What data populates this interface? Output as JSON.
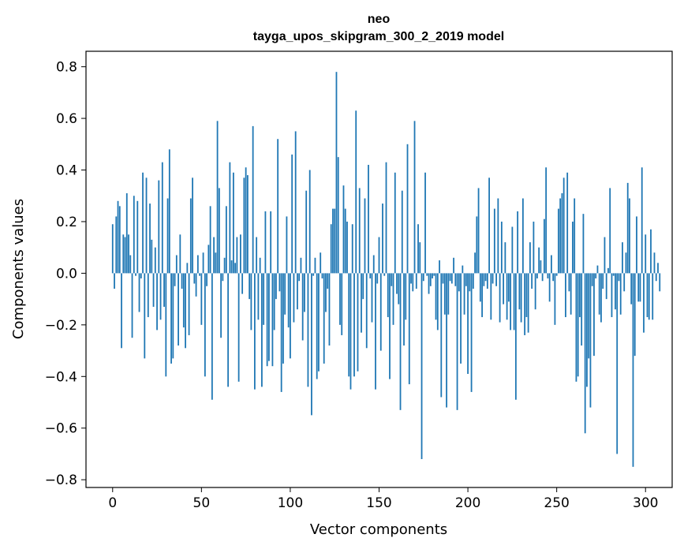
{
  "chart_data": {
    "type": "bar",
    "title": "neo",
    "subtitle": "tayga_upos_skipgram_300_2_2019 model",
    "xlabel": "Vector components",
    "ylabel": "Components values",
    "xlim": [
      -15,
      315
    ],
    "ylim": [
      -0.83,
      0.86
    ],
    "xticks": [
      0,
      50,
      100,
      150,
      200,
      250,
      300
    ],
    "xtick_labels": [
      "0",
      "50",
      "100",
      "150",
      "200",
      "250",
      "300"
    ],
    "yticks": [
      0.8,
      0.6,
      0.4,
      0.2,
      0.0,
      -0.2,
      -0.4,
      -0.6,
      -0.8
    ],
    "ytick_labels": [
      "0.8",
      "0.6",
      "0.4",
      "0.2",
      "0.0",
      "−0.2",
      "−0.4",
      "−0.6",
      "−0.8"
    ],
    "bar_color": "#1f77b4",
    "values": [
      0.19,
      -0.06,
      0.22,
      0.28,
      0.26,
      -0.29,
      0.15,
      0.14,
      0.31,
      0.15,
      0.07,
      -0.25,
      0.3,
      -0.01,
      0.28,
      -0.15,
      -0.02,
      0.39,
      -0.33,
      0.37,
      -0.17,
      0.27,
      0.13,
      -0.13,
      0.1,
      -0.22,
      0.36,
      -0.18,
      0.43,
      -0.13,
      -0.4,
      0.29,
      0.48,
      -0.35,
      -0.33,
      -0.05,
      0.07,
      -0.28,
      0.15,
      -0.06,
      -0.21,
      -0.29,
      0.04,
      -0.24,
      0.29,
      0.37,
      -0.04,
      -0.09,
      0.07,
      -0.01,
      -0.2,
      0.08,
      -0.4,
      -0.05,
      0.11,
      0.26,
      -0.49,
      0.14,
      0.08,
      0.59,
      0.33,
      -0.25,
      -0.03,
      0.06,
      0.26,
      -0.44,
      0.43,
      0.05,
      0.39,
      0.04,
      0.14,
      -0.42,
      0.15,
      -0.08,
      0.37,
      0.41,
      0.38,
      -0.1,
      -0.22,
      0.57,
      -0.45,
      0.14,
      -0.18,
      0.06,
      -0.44,
      -0.2,
      0.24,
      -0.36,
      -0.34,
      0.24,
      -0.36,
      -0.22,
      -0.1,
      0.52,
      -0.07,
      -0.46,
      -0.35,
      -0.16,
      0.22,
      -0.21,
      -0.33,
      0.46,
      -0.19,
      0.55,
      -0.14,
      -0.03,
      0.06,
      -0.26,
      -0.15,
      0.32,
      -0.44,
      0.4,
      -0.55,
      -0.01,
      0.06,
      -0.41,
      -0.38,
      0.08,
      -0.02,
      -0.35,
      -0.15,
      -0.06,
      -0.28,
      0.19,
      0.25,
      0.25,
      0.78,
      0.45,
      -0.2,
      -0.24,
      0.34,
      0.25,
      0.2,
      -0.4,
      -0.45,
      0.19,
      -0.4,
      0.63,
      -0.38,
      0.33,
      -0.23,
      -0.1,
      0.29,
      -0.29,
      0.42,
      -0.02,
      -0.19,
      0.07,
      -0.45,
      -0.04,
      0.14,
      -0.3,
      0.27,
      -0.01,
      0.43,
      -0.17,
      -0.41,
      -0.05,
      -0.2,
      0.39,
      -0.08,
      -0.12,
      -0.53,
      0.32,
      -0.28,
      -0.18,
      0.5,
      -0.43,
      -0.04,
      -0.07,
      0.59,
      -0.06,
      0.19,
      0.12,
      -0.72,
      -0.03,
      0.39,
      -0.01,
      -0.08,
      -0.05,
      -0.02,
      -0.01,
      -0.18,
      -0.22,
      0.05,
      -0.48,
      -0.04,
      -0.16,
      -0.52,
      -0.16,
      -0.03,
      -0.04,
      0.06,
      -0.05,
      -0.53,
      -0.07,
      -0.35,
      0.03,
      -0.16,
      -0.05,
      -0.39,
      -0.07,
      -0.46,
      -0.06,
      0.08,
      0.22,
      0.33,
      -0.11,
      -0.17,
      -0.05,
      -0.03,
      -0.06,
      0.37,
      -0.18,
      -0.04,
      0.25,
      -0.05,
      0.29,
      -0.19,
      0.2,
      -0.12,
      0.12,
      -0.18,
      -0.11,
      -0.22,
      0.18,
      -0.22,
      -0.49,
      0.24,
      -0.14,
      -0.19,
      0.29,
      -0.24,
      -0.17,
      -0.23,
      0.12,
      -0.06,
      0.2,
      -0.14,
      -0.02,
      0.1,
      0.05,
      -0.03,
      0.21,
      0.41,
      -0.02,
      -0.11,
      0.07,
      -0.03,
      -0.2,
      -0.01,
      0.25,
      0.29,
      0.31,
      0.37,
      -0.17,
      0.39,
      -0.07,
      -0.16,
      0.2,
      0.29,
      -0.42,
      -0.4,
      -0.17,
      -0.28,
      0.23,
      -0.62,
      -0.44,
      -0.33,
      -0.52,
      -0.05,
      -0.32,
      -0.02,
      0.03,
      -0.16,
      -0.19,
      -0.06,
      0.14,
      -0.1,
      0.02,
      0.33,
      -0.17,
      -0.01,
      -0.14,
      -0.7,
      -0.03,
      -0.16,
      0.12,
      -0.07,
      0.08,
      0.35,
      0.29,
      -0.12,
      -0.75,
      -0.32,
      0.22,
      -0.11,
      -0.11,
      0.41,
      -0.23,
      0.15,
      -0.17,
      -0.18,
      0.17,
      -0.18,
      0.08,
      -0.03,
      0.04,
      -0.07
    ]
  }
}
